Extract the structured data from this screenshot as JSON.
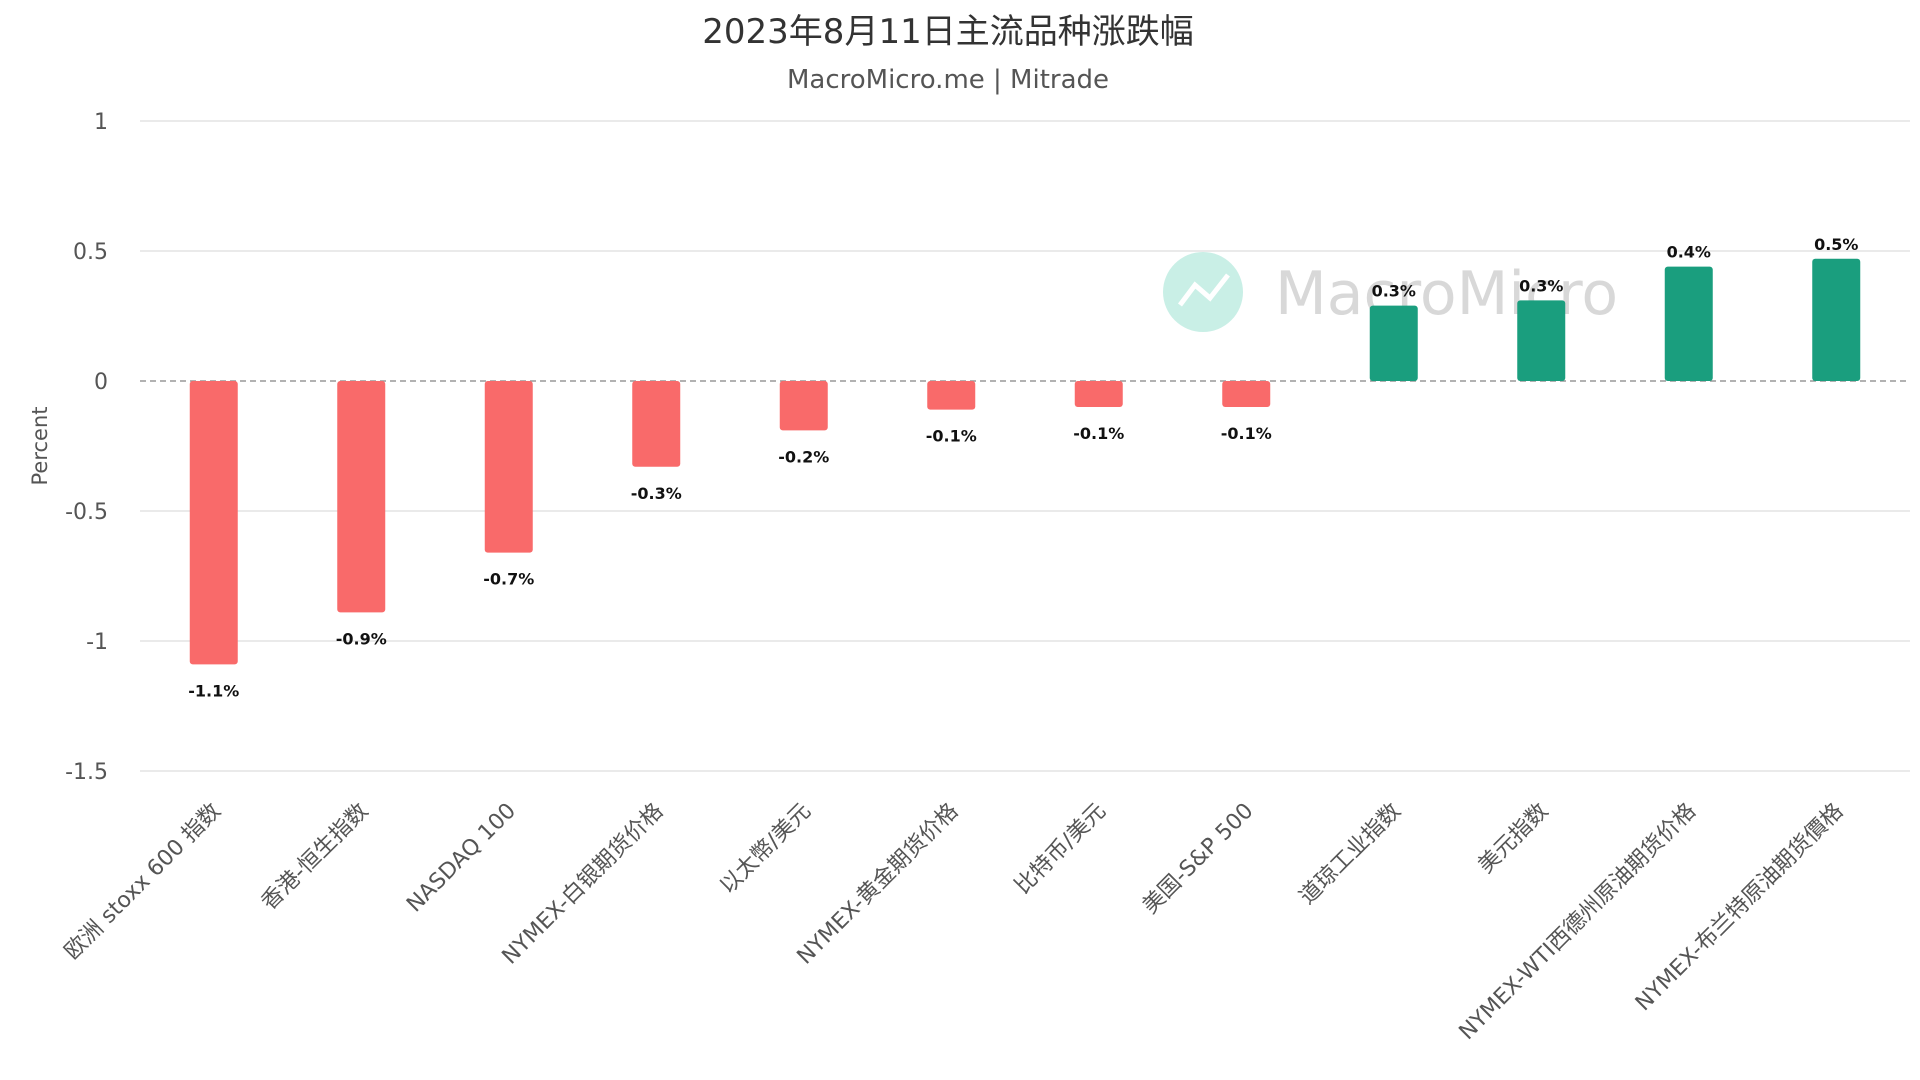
{
  "chart_data": {
    "type": "bar",
    "title": "2023年8月11日主流品种涨跌幅",
    "subtitle": "MacroMicro.me | Mitrade",
    "xlabel": "",
    "ylabel": "Percent",
    "ylim": [
      -1.5,
      1
    ],
    "yticks": [
      1,
      0.5,
      0,
      -0.5,
      -1,
      -1.5
    ],
    "ytick_labels": [
      "1",
      "0.5",
      "0",
      "-0.5",
      "-1",
      "-1.5"
    ],
    "grid": true,
    "zero_line": "dashed",
    "categories": [
      "欧洲 stoxx 600 指数",
      "香港-恒生指数",
      "NASDAQ 100",
      "NYMEX-白银期货价格",
      "以太幣/美元",
      "NYMEX-黄金期货价格",
      "比特币/美元",
      "美国-S&P 500",
      "道琼工业指数",
      "美元指数",
      "NYMEX-WTI西德州原油期货价格",
      "NYMEX-布兰特原油期货價格"
    ],
    "values": [
      -1.09,
      -0.89,
      -0.66,
      -0.33,
      -0.19,
      -0.11,
      -0.1,
      -0.1,
      0.29,
      0.31,
      0.44,
      0.47
    ],
    "data_labels": [
      "-1.1%",
      "-0.9%",
      "-0.7%",
      "-0.3%",
      "-0.2%",
      "-0.1%",
      "-0.1%",
      "-0.1%",
      "0.3%",
      "0.3%",
      "0.4%",
      "0.5%"
    ],
    "colors": {
      "negative": "#f96a6a",
      "positive": "#1a9e7e"
    }
  },
  "watermark": {
    "text": "MacroMicro",
    "icon": "line-chart-icon",
    "color": "#c9efe6"
  }
}
